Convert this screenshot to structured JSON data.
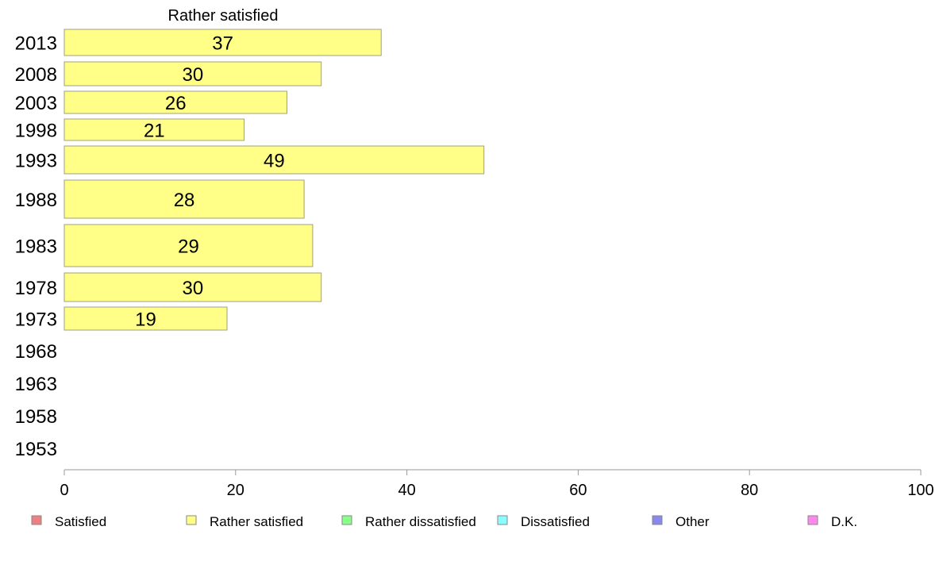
{
  "chart_data": {
    "type": "bar",
    "orientation": "horizontal",
    "title": "Rather satisfied",
    "categories": [
      "2013",
      "2008",
      "2003",
      "1998",
      "1993",
      "1988",
      "1983",
      "1978",
      "1973",
      "1968",
      "1963",
      "1958",
      "1953"
    ],
    "series": [
      {
        "name": "Rather satisfied",
        "color": "#ffff88",
        "values": [
          37,
          30,
          26,
          21,
          49,
          28,
          29,
          30,
          19,
          null,
          null,
          null,
          null
        ]
      }
    ],
    "xlim": [
      0,
      100
    ],
    "xticks": [
      0,
      20,
      40,
      60,
      80,
      100
    ],
    "grid": false,
    "legend": {
      "placement": "bottom",
      "items": [
        {
          "label": "Satisfied",
          "color": "#f08080"
        },
        {
          "label": "Rather satisfied",
          "color": "#ffff88"
        },
        {
          "label": "Rather dissatisfied",
          "color": "#88ff88"
        },
        {
          "label": "Dissatisfied",
          "color": "#88ffff"
        },
        {
          "label": "Other",
          "color": "#8888ee"
        },
        {
          "label": "D.K.",
          "color": "#ff88ee"
        }
      ]
    }
  }
}
